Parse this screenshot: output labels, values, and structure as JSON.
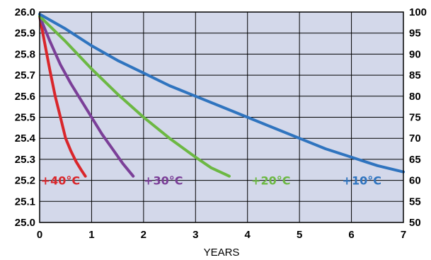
{
  "chart_data": {
    "type": "line",
    "title": "",
    "xlabel": "YEARS",
    "ylabel": "",
    "x_ticks": [
      "0",
      "1",
      "2",
      "3",
      "4",
      "5",
      "6",
      "7"
    ],
    "y_ticks_left": [
      "26.0",
      "25.9",
      "25.8",
      "25.7",
      "25.6",
      "25.5",
      "25.4",
      "25.3",
      "25.2",
      "25.1",
      "25.0"
    ],
    "y_ticks_right": [
      "100",
      "95",
      "90",
      "85",
      "80",
      "75",
      "70",
      "65",
      "60",
      "55",
      "50"
    ],
    "xlim": [
      0,
      7
    ],
    "ylim": [
      25.0,
      26.0
    ],
    "ylim_right": [
      50,
      100
    ],
    "grid": true,
    "plot_background": "#d3d8ea",
    "series": [
      {
        "name": "+40°C",
        "color": "#d9262b",
        "points": [
          [
            0,
            25.98
          ],
          [
            0.1,
            25.85
          ],
          [
            0.2,
            25.72
          ],
          [
            0.3,
            25.6
          ],
          [
            0.4,
            25.5
          ],
          [
            0.5,
            25.4
          ],
          [
            0.6,
            25.34
          ],
          [
            0.7,
            25.29
          ],
          [
            0.8,
            25.25
          ],
          [
            0.88,
            25.22
          ]
        ]
      },
      {
        "name": "+30°C",
        "color": "#7b3f98",
        "points": [
          [
            0,
            25.98
          ],
          [
            0.2,
            25.86
          ],
          [
            0.4,
            25.75
          ],
          [
            0.6,
            25.66
          ],
          [
            0.8,
            25.58
          ],
          [
            1.0,
            25.5
          ],
          [
            1.2,
            25.42
          ],
          [
            1.4,
            25.35
          ],
          [
            1.6,
            25.28
          ],
          [
            1.8,
            25.22
          ]
        ]
      },
      {
        "name": "+20°C",
        "color": "#6cb843",
        "points": [
          [
            0,
            25.98
          ],
          [
            0.5,
            25.86
          ],
          [
            1.0,
            25.73
          ],
          [
            1.5,
            25.61
          ],
          [
            2.0,
            25.5
          ],
          [
            2.5,
            25.4
          ],
          [
            3.0,
            25.31
          ],
          [
            3.3,
            25.26
          ],
          [
            3.65,
            25.22
          ]
        ]
      },
      {
        "name": "+10°C",
        "color": "#2f74bf",
        "points": [
          [
            0,
            25.99
          ],
          [
            0.5,
            25.92
          ],
          [
            1,
            25.84
          ],
          [
            1.5,
            25.77
          ],
          [
            2,
            25.71
          ],
          [
            2.5,
            25.65
          ],
          [
            3,
            25.6
          ],
          [
            3.5,
            25.55
          ],
          [
            4,
            25.5
          ],
          [
            4.5,
            25.45
          ],
          [
            5,
            25.4
          ],
          [
            5.5,
            25.35
          ],
          [
            6,
            25.31
          ],
          [
            6.5,
            25.27
          ],
          [
            7,
            25.24
          ]
        ]
      }
    ]
  }
}
